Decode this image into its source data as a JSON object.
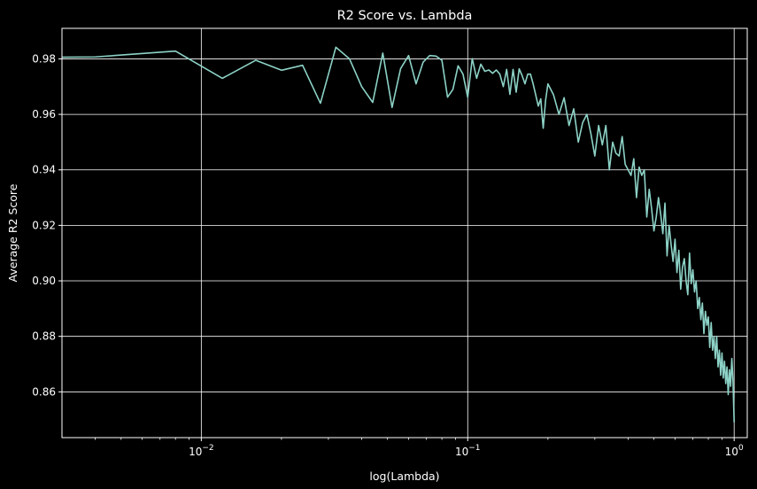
{
  "chart_data": {
    "type": "line",
    "title": "R2 Score vs. Lambda",
    "xlabel": "log(Lambda)",
    "ylabel": "Average R2 Score",
    "x_scale": "log",
    "xlim": [
      0.003,
      1.12
    ],
    "ylim": [
      0.8435,
      0.991
    ],
    "grid": true,
    "x_ticks": [
      {
        "value": 0.01,
        "base": "10",
        "exp": "−2"
      },
      {
        "value": 0.1,
        "base": "10",
        "exp": "−1"
      },
      {
        "value": 1,
        "base": "10",
        "exp": "0"
      }
    ],
    "y_ticks": [
      {
        "value": 0.86,
        "label": "0.86"
      },
      {
        "value": 0.88,
        "label": "0.88"
      },
      {
        "value": 0.9,
        "label": "0.90"
      },
      {
        "value": 0.92,
        "label": "0.92"
      },
      {
        "value": 0.94,
        "label": "0.94"
      },
      {
        "value": 0.96,
        "label": "0.96"
      },
      {
        "value": 0.98,
        "label": "0.98"
      }
    ],
    "series": [
      {
        "color": "#8dd3c7",
        "x": [
          0.002,
          0.004,
          0.008,
          0.012,
          0.016,
          0.02,
          0.024,
          0.028,
          0.032,
          0.036,
          0.04,
          0.044,
          0.048,
          0.052,
          0.056,
          0.06,
          0.064,
          0.068,
          0.072,
          0.076,
          0.08,
          0.084,
          0.088,
          0.092,
          0.096,
          0.1,
          0.104,
          0.108,
          0.112,
          0.116,
          0.12,
          0.124,
          0.128,
          0.132,
          0.136,
          0.14,
          0.144,
          0.148,
          0.152,
          0.156,
          0.16,
          0.164,
          0.168,
          0.172,
          0.176,
          0.18,
          0.184,
          0.188,
          0.192,
          0.196,
          0.2,
          0.21,
          0.22,
          0.23,
          0.24,
          0.25,
          0.26,
          0.27,
          0.28,
          0.29,
          0.3,
          0.31,
          0.32,
          0.33,
          0.34,
          0.35,
          0.36,
          0.37,
          0.38,
          0.39,
          0.4,
          0.41,
          0.42,
          0.43,
          0.44,
          0.45,
          0.46,
          0.47,
          0.48,
          0.49,
          0.5,
          0.51,
          0.52,
          0.53,
          0.54,
          0.55,
          0.56,
          0.57,
          0.58,
          0.59,
          0.6,
          0.61,
          0.62,
          0.63,
          0.64,
          0.65,
          0.66,
          0.67,
          0.68,
          0.69,
          0.7,
          0.71,
          0.72,
          0.73,
          0.74,
          0.75,
          0.76,
          0.77,
          0.78,
          0.79,
          0.8,
          0.81,
          0.82,
          0.83,
          0.84,
          0.85,
          0.86,
          0.87,
          0.88,
          0.89,
          0.9,
          0.91,
          0.92,
          0.93,
          0.94,
          0.95,
          0.96,
          0.97,
          0.98,
          0.99,
          1.0
        ],
        "y": [
          0.9805,
          0.9807,
          0.9828,
          0.973,
          0.9795,
          0.9759,
          0.9777,
          0.964,
          0.9842,
          0.98,
          0.97,
          0.9643,
          0.9821,
          0.9625,
          0.9765,
          0.9812,
          0.971,
          0.9788,
          0.9812,
          0.981,
          0.9795,
          0.9662,
          0.969,
          0.9775,
          0.9745,
          0.9662,
          0.9801,
          0.973,
          0.9781,
          0.9755,
          0.976,
          0.9748,
          0.976,
          0.9745,
          0.97,
          0.9762,
          0.9672,
          0.9762,
          0.968,
          0.9764,
          0.974,
          0.971,
          0.9745,
          0.9745,
          0.971,
          0.967,
          0.963,
          0.9656,
          0.955,
          0.965,
          0.971,
          0.967,
          0.96,
          0.966,
          0.956,
          0.962,
          0.95,
          0.957,
          0.96,
          0.953,
          0.945,
          0.956,
          0.949,
          0.956,
          0.94,
          0.95,
          0.946,
          0.945,
          0.952,
          0.942,
          0.94,
          0.938,
          0.944,
          0.93,
          0.941,
          0.938,
          0.94,
          0.923,
          0.933,
          0.926,
          0.918,
          0.923,
          0.93,
          0.924,
          0.917,
          0.928,
          0.909,
          0.92,
          0.913,
          0.907,
          0.915,
          0.903,
          0.911,
          0.897,
          0.905,
          0.908,
          0.9,
          0.895,
          0.91,
          0.899,
          0.904,
          0.896,
          0.9,
          0.89,
          0.894,
          0.886,
          0.892,
          0.881,
          0.889,
          0.884,
          0.887,
          0.876,
          0.885,
          0.875,
          0.88,
          0.872,
          0.88,
          0.869,
          0.875,
          0.866,
          0.874,
          0.865,
          0.871,
          0.863,
          0.869,
          0.859,
          0.868,
          0.862,
          0.872,
          0.864,
          0.849
        ]
      }
    ]
  }
}
